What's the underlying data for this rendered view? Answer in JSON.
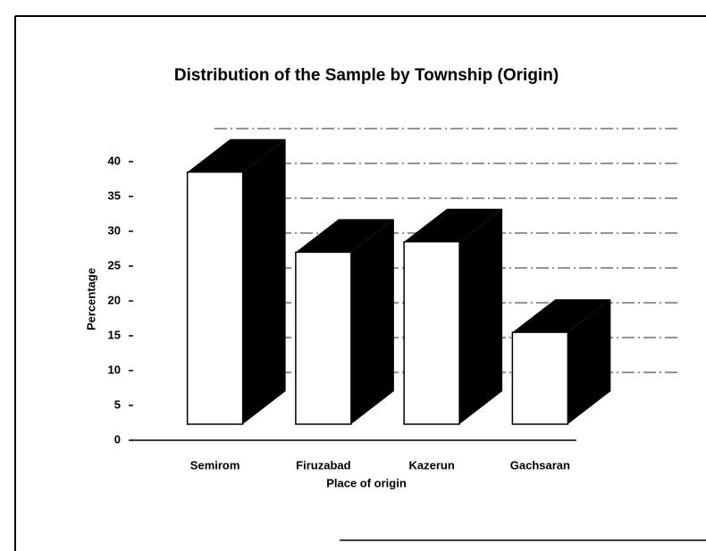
{
  "chart_data": {
    "type": "bar3d",
    "title": "Distribution of the Sample by Township (Origin)",
    "x_label": "Place of origin",
    "y_label": "Percentage",
    "categories": [
      "Semirom",
      "Firuzabad",
      "Kazerun",
      "Gachsaran"
    ],
    "values": [
      38.5,
      27,
      28.5,
      15.5
    ],
    "color": "#ffffff",
    "side_color": "#000000",
    "ylim": [
      0,
      40
    ],
    "yticks": [
      0,
      5,
      10,
      15,
      20,
      25,
      30,
      35,
      40
    ],
    "grid": true
  }
}
